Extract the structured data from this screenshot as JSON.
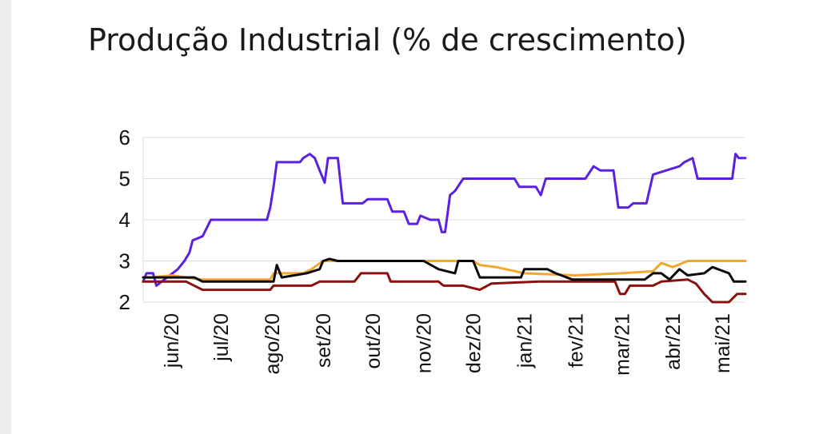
{
  "chart_data": {
    "type": "line",
    "title": "Produção Industrial (% de crescimento)",
    "xlabel": "",
    "ylabel": "",
    "ylim": [
      2,
      6
    ],
    "y_ticks": [
      "2",
      "3",
      "4",
      "5",
      "6"
    ],
    "x_ticks": [
      "jun/20",
      "jul/20",
      "ago/20",
      "set/20",
      "out/20",
      "nov/20",
      "dez/20",
      "jan/21",
      "fev/21",
      "mar/21",
      "abr/21",
      "mai/21"
    ],
    "x_range": [
      "2020-05-15",
      "2021-05-15"
    ],
    "grid": "horizontal",
    "legend": "none",
    "series": [
      {
        "color": "#5b21e0",
        "points": [
          [
            "2020-05-15",
            2.5
          ],
          [
            "2020-05-17",
            2.7
          ],
          [
            "2020-05-21",
            2.7
          ],
          [
            "2020-05-23",
            2.4
          ],
          [
            "2020-06-05",
            2.8
          ],
          [
            "2020-06-09",
            3.0
          ],
          [
            "2020-06-12",
            3.2
          ],
          [
            "2020-06-14",
            3.5
          ],
          [
            "2020-06-20",
            3.6
          ],
          [
            "2020-06-25",
            4.0
          ],
          [
            "2020-07-01",
            4.0
          ],
          [
            "2020-07-29",
            4.0
          ],
          [
            "2020-07-31",
            4.3
          ],
          [
            "2020-08-02",
            4.8
          ],
          [
            "2020-08-04",
            5.4
          ],
          [
            "2020-08-15",
            5.4
          ],
          [
            "2020-08-18",
            5.4
          ],
          [
            "2020-08-20",
            5.5
          ],
          [
            "2020-08-24",
            5.6
          ],
          [
            "2020-08-27",
            5.5
          ],
          [
            "2020-08-30",
            5.2
          ],
          [
            "2020-09-02",
            4.9
          ],
          [
            "2020-09-04",
            5.5
          ],
          [
            "2020-09-10",
            5.5
          ],
          [
            "2020-09-13",
            4.4
          ],
          [
            "2020-09-25",
            4.4
          ],
          [
            "2020-09-28",
            4.5
          ],
          [
            "2020-10-10",
            4.5
          ],
          [
            "2020-10-13",
            4.2
          ],
          [
            "2020-10-20",
            4.2
          ],
          [
            "2020-10-23",
            3.9
          ],
          [
            "2020-10-28",
            3.9
          ],
          [
            "2020-10-30",
            4.1
          ],
          [
            "2020-11-05",
            4.0
          ],
          [
            "2020-11-10",
            4.0
          ],
          [
            "2020-11-12",
            3.7
          ],
          [
            "2020-11-14",
            3.7
          ],
          [
            "2020-11-17",
            4.6
          ],
          [
            "2020-11-20",
            4.7
          ],
          [
            "2020-11-25",
            5.0
          ],
          [
            "2020-12-26",
            5.0
          ],
          [
            "2020-12-29",
            4.8
          ],
          [
            "2021-01-08",
            4.8
          ],
          [
            "2021-01-11",
            4.6
          ],
          [
            "2021-01-14",
            5.0
          ],
          [
            "2021-02-07",
            5.0
          ],
          [
            "2021-02-12",
            5.3
          ],
          [
            "2021-02-16",
            5.2
          ],
          [
            "2021-02-24",
            5.2
          ],
          [
            "2021-02-27",
            4.3
          ],
          [
            "2021-03-05",
            4.3
          ],
          [
            "2021-03-08",
            4.4
          ],
          [
            "2021-03-16",
            4.4
          ],
          [
            "2021-03-20",
            5.1
          ],
          [
            "2021-03-28",
            5.2
          ],
          [
            "2021-04-05",
            5.3
          ],
          [
            "2021-04-08",
            5.4
          ],
          [
            "2021-04-13",
            5.5
          ],
          [
            "2021-04-16",
            5.0
          ],
          [
            "2021-04-28",
            5.0
          ],
          [
            "2021-05-07",
            5.0
          ],
          [
            "2021-05-09",
            5.6
          ],
          [
            "2021-05-11",
            5.5
          ],
          [
            "2021-05-15",
            5.5
          ]
        ]
      },
      {
        "color": "#f0a830",
        "points": [
          [
            "2020-05-15",
            2.6
          ],
          [
            "2020-05-20",
            2.6
          ],
          [
            "2020-06-01",
            2.65
          ],
          [
            "2020-06-10",
            2.6
          ],
          [
            "2020-06-20",
            2.55
          ],
          [
            "2020-07-31",
            2.55
          ],
          [
            "2020-08-02",
            2.7
          ],
          [
            "2020-08-20",
            2.7
          ],
          [
            "2020-08-25",
            2.8
          ],
          [
            "2020-09-01",
            3.0
          ],
          [
            "2020-09-20",
            3.0
          ],
          [
            "2020-10-01",
            3.0
          ],
          [
            "2020-11-01",
            3.0
          ],
          [
            "2020-11-20",
            3.0
          ],
          [
            "2020-12-01",
            3.0
          ],
          [
            "2020-12-05",
            2.9
          ],
          [
            "2020-12-15",
            2.85
          ],
          [
            "2021-01-01",
            2.7
          ],
          [
            "2021-02-01",
            2.65
          ],
          [
            "2021-03-01",
            2.7
          ],
          [
            "2021-03-20",
            2.75
          ],
          [
            "2021-03-25",
            2.95
          ],
          [
            "2021-04-01",
            2.85
          ],
          [
            "2021-04-10",
            3.0
          ],
          [
            "2021-05-15",
            3.0
          ]
        ]
      },
      {
        "color": "#8b1010",
        "points": [
          [
            "2020-05-15",
            2.5
          ],
          [
            "2020-06-10",
            2.5
          ],
          [
            "2020-06-20",
            2.3
          ],
          [
            "2020-07-31",
            2.3
          ],
          [
            "2020-08-02",
            2.4
          ],
          [
            "2020-08-25",
            2.4
          ],
          [
            "2020-08-30",
            2.5
          ],
          [
            "2020-09-20",
            2.5
          ],
          [
            "2020-09-24",
            2.7
          ],
          [
            "2020-10-10",
            2.7
          ],
          [
            "2020-10-12",
            2.5
          ],
          [
            "2020-11-10",
            2.5
          ],
          [
            "2020-11-13",
            2.4
          ],
          [
            "2020-11-20",
            2.4
          ],
          [
            "2020-11-25",
            2.4
          ],
          [
            "2020-12-05",
            2.3
          ],
          [
            "2020-12-12",
            2.45
          ],
          [
            "2021-01-10",
            2.5
          ],
          [
            "2021-02-15",
            2.5
          ],
          [
            "2021-02-25",
            2.5
          ],
          [
            "2021-02-28",
            2.2
          ],
          [
            "2021-03-03",
            2.2
          ],
          [
            "2021-03-06",
            2.4
          ],
          [
            "2021-03-20",
            2.4
          ],
          [
            "2021-03-25",
            2.5
          ],
          [
            "2021-04-10",
            2.55
          ],
          [
            "2021-04-15",
            2.45
          ],
          [
            "2021-04-20",
            2.2
          ],
          [
            "2021-04-25",
            2.0
          ],
          [
            "2021-05-05",
            2.0
          ],
          [
            "2021-05-10",
            2.2
          ],
          [
            "2021-05-15",
            2.2
          ]
        ]
      },
      {
        "color": "#0a0a0a",
        "points": [
          [
            "2020-05-15",
            2.6
          ],
          [
            "2020-06-15",
            2.6
          ],
          [
            "2020-06-20",
            2.5
          ],
          [
            "2020-08-02",
            2.5
          ],
          [
            "2020-08-04",
            2.9
          ],
          [
            "2020-08-07",
            2.6
          ],
          [
            "2020-08-22",
            2.7
          ],
          [
            "2020-08-30",
            2.8
          ],
          [
            "2020-09-01",
            3.0
          ],
          [
            "2020-09-05",
            3.05
          ],
          [
            "2020-09-10",
            3.0
          ],
          [
            "2020-11-01",
            3.0
          ],
          [
            "2020-11-10",
            2.8
          ],
          [
            "2020-11-20",
            2.7
          ],
          [
            "2020-11-22",
            3.0
          ],
          [
            "2020-12-01",
            3.0
          ],
          [
            "2020-12-05",
            2.6
          ],
          [
            "2020-12-30",
            2.6
          ],
          [
            "2021-01-01",
            2.8
          ],
          [
            "2021-01-15",
            2.8
          ],
          [
            "2021-01-20",
            2.7
          ],
          [
            "2021-01-30",
            2.55
          ],
          [
            "2021-02-20",
            2.55
          ],
          [
            "2021-03-01",
            2.55
          ],
          [
            "2021-03-15",
            2.55
          ],
          [
            "2021-03-20",
            2.7
          ],
          [
            "2021-03-25",
            2.7
          ],
          [
            "2021-03-30",
            2.55
          ],
          [
            "2021-04-05",
            2.8
          ],
          [
            "2021-04-10",
            2.65
          ],
          [
            "2021-04-20",
            2.7
          ],
          [
            "2021-04-25",
            2.85
          ],
          [
            "2021-05-05",
            2.7
          ],
          [
            "2021-05-08",
            2.5
          ],
          [
            "2021-05-15",
            2.5
          ]
        ]
      }
    ]
  }
}
